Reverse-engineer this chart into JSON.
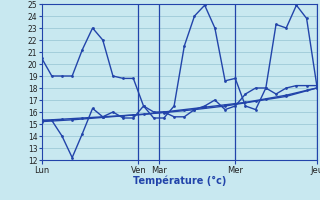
{
  "background_color": "#c8e8f0",
  "grid_color": "#88bbcc",
  "line_color": "#2244aa",
  "xlabel": "Température (°c)",
  "ylim": [
    12,
    25
  ],
  "xlim": [
    0,
    27
  ],
  "xtick_positions": [
    0,
    9.5,
    11.5,
    19,
    27
  ],
  "xtick_labels": [
    "Lun",
    "Ven",
    "Mar",
    "Mer",
    "Jeu"
  ],
  "vlines": [
    9.5,
    11.5,
    19,
    27
  ],
  "series1_x": [
    0,
    1,
    2,
    3,
    4,
    5,
    6,
    7,
    8,
    9,
    10,
    11,
    12,
    13,
    14,
    15,
    16,
    17,
    18,
    19,
    20,
    21,
    22,
    23,
    24,
    25,
    26,
    27
  ],
  "series1_y": [
    20.5,
    19.0,
    19.0,
    19.0,
    21.2,
    23.0,
    22.0,
    19.0,
    18.8,
    18.8,
    16.5,
    15.5,
    15.5,
    16.5,
    21.5,
    24.0,
    24.9,
    23.0,
    18.6,
    18.8,
    16.5,
    16.2,
    18.0,
    23.3,
    23.0,
    24.9,
    23.8,
    18.2
  ],
  "series2_x": [
    0,
    1,
    2,
    3,
    4,
    5,
    6,
    7,
    8,
    9,
    10,
    11,
    12,
    13,
    14,
    15,
    16,
    17,
    18,
    19,
    20,
    21,
    22,
    23,
    24,
    25,
    26,
    27
  ],
  "series2_y": [
    15.3,
    15.3,
    14.0,
    12.2,
    14.2,
    16.3,
    15.6,
    16.0,
    15.5,
    15.5,
    16.5,
    16.0,
    16.0,
    15.6,
    15.6,
    16.2,
    16.5,
    17.0,
    16.2,
    16.5,
    17.5,
    18.0,
    18.0,
    17.5,
    18.0,
    18.2,
    18.2,
    18.2
  ],
  "series3_x": [
    0,
    2,
    4,
    6,
    8,
    10,
    12,
    14,
    16,
    18,
    20,
    22,
    24,
    26,
    27
  ],
  "series3_y": [
    15.3,
    15.4,
    15.5,
    15.6,
    15.7,
    15.8,
    16.0,
    16.2,
    16.4,
    16.6,
    16.8,
    17.1,
    17.4,
    17.8,
    18.0
  ],
  "series4_x": [
    0,
    3,
    6,
    9,
    12,
    15,
    18,
    21,
    24,
    27
  ],
  "series4_y": [
    15.2,
    15.35,
    15.55,
    15.75,
    15.95,
    16.2,
    16.5,
    16.9,
    17.3,
    18.0
  ]
}
